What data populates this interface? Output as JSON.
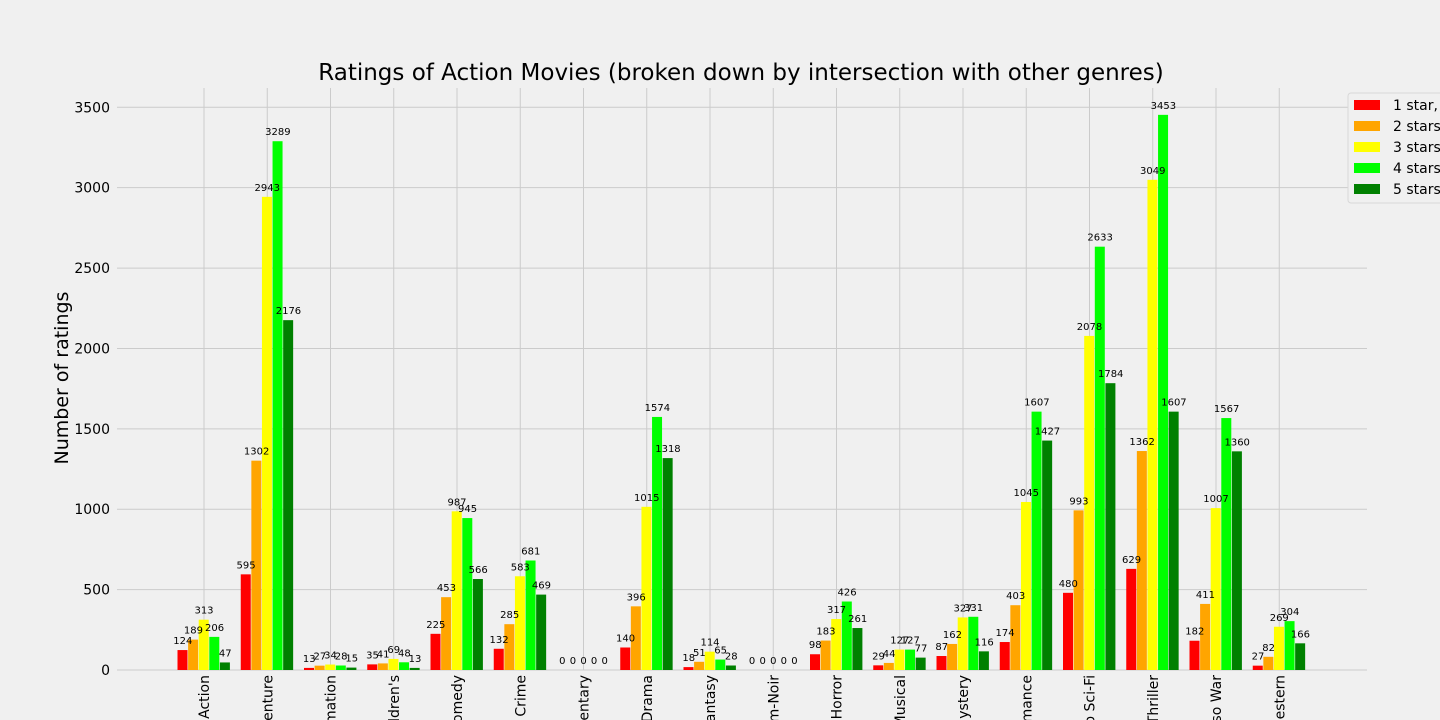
{
  "chart_data": {
    "type": "bar",
    "title": "Ratings of Action Movies (broken down by intersection with other genres)",
    "xlabel": "",
    "ylabel": "Number of ratings",
    "ylim": [
      0,
      3620
    ],
    "yticks": [
      0,
      500,
      1000,
      1500,
      2000,
      2500,
      3000,
      3500
    ],
    "grid": true,
    "legend_position": "top-right",
    "categories": [
      "Action",
      "Adventure",
      "Animation",
      "Children's",
      "Comedy",
      "Crime",
      "Documentary",
      "Drama",
      "Fantasy",
      "Film-Noir",
      "Horror",
      "Musical",
      "Mystery",
      "Romance",
      "Sci-Fi",
      "Thriller",
      "War",
      "Western"
    ],
    "tick_labels_visible": [
      "Action",
      "enture",
      "mation",
      "ldren's",
      "omedy",
      "Crime",
      "entary",
      "Drama",
      "antasy",
      "m-Noir",
      "Horror",
      "Musical",
      "lystery",
      "mance",
      "o Sci-Fi",
      "Thriller",
      "so War",
      "estern"
    ],
    "series": [
      {
        "name": "1 star,",
        "color": "#ff0000",
        "values": [
          124,
          595,
          13,
          35,
          225,
          132,
          0,
          140,
          18,
          0,
          98,
          29,
          87,
          174,
          480,
          629,
          182,
          27
        ]
      },
      {
        "name": "2 stars",
        "color": "#ffa500",
        "values": [
          189,
          1302,
          27,
          41,
          453,
          285,
          0,
          396,
          51,
          0,
          183,
          44,
          162,
          403,
          993,
          1362,
          411,
          82
        ]
      },
      {
        "name": "3 stars",
        "color": "#ffff00",
        "values": [
          313,
          2943,
          34,
          69,
          987,
          583,
          0,
          1015,
          114,
          0,
          317,
          127,
          327,
          1045,
          2078,
          3049,
          1007,
          269
        ]
      },
      {
        "name": "4 stars",
        "color": "#00ff00",
        "values": [
          206,
          3289,
          28,
          48,
          945,
          681,
          0,
          1574,
          65,
          0,
          426,
          127,
          331,
          1607,
          2633,
          3453,
          1567,
          304
        ]
      },
      {
        "name": "5 stars",
        "color": "#008000",
        "values": [
          47,
          2176,
          15,
          13,
          566,
          469,
          0,
          1318,
          28,
          0,
          261,
          77,
          116,
          1427,
          1784,
          1607,
          1360,
          166
        ]
      }
    ]
  }
}
